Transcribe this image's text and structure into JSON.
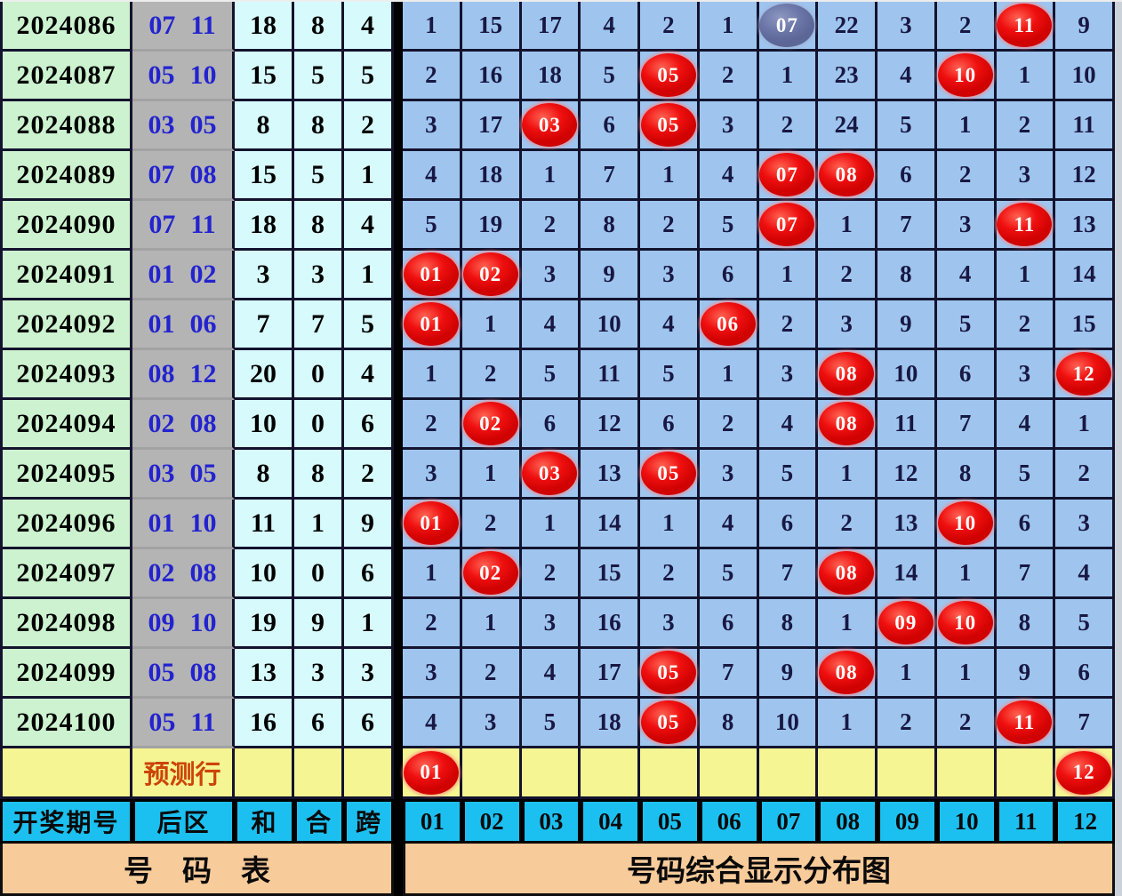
{
  "chart_data": {
    "type": "table",
    "title": "号码综合显示分布图",
    "header": {
      "period": "开奖期号",
      "back": "后区",
      "sum": "和",
      "he": "合",
      "kua": "跨"
    },
    "number_headers": [
      "01",
      "02",
      "03",
      "04",
      "05",
      "06",
      "07",
      "08",
      "09",
      "10",
      "11",
      "12"
    ],
    "prediction_label": "预测行",
    "footer_left": "号　码　表",
    "footer_right": "号码综合显示分布图",
    "rows": [
      {
        "period": "2024086",
        "back": [
          "07",
          "11"
        ],
        "sum": "18",
        "he": "8",
        "kua": "4",
        "cells": [
          "1",
          "15",
          "17",
          "4",
          "2",
          "1",
          {
            "n": "07",
            "ball": "slate"
          },
          "22",
          "3",
          "2",
          {
            "n": "11",
            "ball": "red"
          },
          "9"
        ]
      },
      {
        "period": "2024087",
        "back": [
          "05",
          "10"
        ],
        "sum": "15",
        "he": "5",
        "kua": "5",
        "cells": [
          "2",
          "16",
          "18",
          "5",
          {
            "n": "05",
            "ball": "red"
          },
          "2",
          "1",
          "23",
          "4",
          {
            "n": "10",
            "ball": "red"
          },
          "1",
          "10"
        ]
      },
      {
        "period": "2024088",
        "back": [
          "03",
          "05"
        ],
        "sum": "8",
        "he": "8",
        "kua": "2",
        "cells": [
          "3",
          "17",
          {
            "n": "03",
            "ball": "red"
          },
          "6",
          {
            "n": "05",
            "ball": "red"
          },
          "3",
          "2",
          "24",
          "5",
          "1",
          "2",
          "11"
        ]
      },
      {
        "period": "2024089",
        "back": [
          "07",
          "08"
        ],
        "sum": "15",
        "he": "5",
        "kua": "1",
        "cells": [
          "4",
          "18",
          "1",
          "7",
          "1",
          "4",
          {
            "n": "07",
            "ball": "red"
          },
          {
            "n": "08",
            "ball": "red"
          },
          "6",
          "2",
          "3",
          "12"
        ]
      },
      {
        "period": "2024090",
        "back": [
          "07",
          "11"
        ],
        "sum": "18",
        "he": "8",
        "kua": "4",
        "cells": [
          "5",
          "19",
          "2",
          "8",
          "2",
          "5",
          {
            "n": "07",
            "ball": "red"
          },
          "1",
          "7",
          "3",
          {
            "n": "11",
            "ball": "red"
          },
          "13"
        ]
      },
      {
        "period": "2024091",
        "back": [
          "01",
          "02"
        ],
        "sum": "3",
        "he": "3",
        "kua": "1",
        "cells": [
          {
            "n": "01",
            "ball": "red"
          },
          {
            "n": "02",
            "ball": "red"
          },
          "3",
          "9",
          "3",
          "6",
          "1",
          "2",
          "8",
          "4",
          "1",
          "14"
        ]
      },
      {
        "period": "2024092",
        "back": [
          "01",
          "06"
        ],
        "sum": "7",
        "he": "7",
        "kua": "5",
        "cells": [
          {
            "n": "01",
            "ball": "red"
          },
          "1",
          "4",
          "10",
          "4",
          {
            "n": "06",
            "ball": "red"
          },
          "2",
          "3",
          "9",
          "5",
          "2",
          "15"
        ]
      },
      {
        "period": "2024093",
        "back": [
          "08",
          "12"
        ],
        "sum": "20",
        "he": "0",
        "kua": "4",
        "cells": [
          "1",
          "2",
          "5",
          "11",
          "5",
          "1",
          "3",
          {
            "n": "08",
            "ball": "red"
          },
          "10",
          "6",
          "3",
          {
            "n": "12",
            "ball": "red"
          }
        ]
      },
      {
        "period": "2024094",
        "back": [
          "02",
          "08"
        ],
        "sum": "10",
        "he": "0",
        "kua": "6",
        "cells": [
          "2",
          {
            "n": "02",
            "ball": "red"
          },
          "6",
          "12",
          "6",
          "2",
          "4",
          {
            "n": "08",
            "ball": "red"
          },
          "11",
          "7",
          "4",
          "1"
        ]
      },
      {
        "period": "2024095",
        "back": [
          "03",
          "05"
        ],
        "sum": "8",
        "he": "8",
        "kua": "2",
        "cells": [
          "3",
          "1",
          {
            "n": "03",
            "ball": "red"
          },
          "13",
          {
            "n": "05",
            "ball": "red"
          },
          "3",
          "5",
          "1",
          "12",
          "8",
          "5",
          "2"
        ]
      },
      {
        "period": "2024096",
        "back": [
          "01",
          "10"
        ],
        "sum": "11",
        "he": "1",
        "kua": "9",
        "cells": [
          {
            "n": "01",
            "ball": "red"
          },
          "2",
          "1",
          "14",
          "1",
          "4",
          "6",
          "2",
          "13",
          {
            "n": "10",
            "ball": "red"
          },
          "6",
          "3"
        ]
      },
      {
        "period": "2024097",
        "back": [
          "02",
          "08"
        ],
        "sum": "10",
        "he": "0",
        "kua": "6",
        "cells": [
          "1",
          {
            "n": "02",
            "ball": "red"
          },
          "2",
          "15",
          "2",
          "5",
          "7",
          {
            "n": "08",
            "ball": "red"
          },
          "14",
          "1",
          "7",
          "4"
        ]
      },
      {
        "period": "2024098",
        "back": [
          "09",
          "10"
        ],
        "sum": "19",
        "he": "9",
        "kua": "1",
        "cells": [
          "2",
          "1",
          "3",
          "16",
          "3",
          "6",
          "8",
          "1",
          {
            "n": "09",
            "ball": "red"
          },
          {
            "n": "10",
            "ball": "red"
          },
          "8",
          "5"
        ]
      },
      {
        "period": "2024099",
        "back": [
          "05",
          "08"
        ],
        "sum": "13",
        "he": "3",
        "kua": "3",
        "cells": [
          "3",
          "2",
          "4",
          "17",
          {
            "n": "05",
            "ball": "red"
          },
          "7",
          "9",
          {
            "n": "08",
            "ball": "red"
          },
          "1",
          "1",
          "9",
          "6"
        ]
      },
      {
        "period": "2024100",
        "back": [
          "05",
          "11"
        ],
        "sum": "16",
        "he": "6",
        "kua": "6",
        "cells": [
          "4",
          "3",
          "5",
          "18",
          {
            "n": "05",
            "ball": "red"
          },
          "8",
          "10",
          "1",
          "2",
          "2",
          {
            "n": "11",
            "ball": "red"
          },
          "7"
        ]
      }
    ],
    "prediction_cells": [
      {
        "n": "01",
        "ball": "red"
      },
      "",
      "",
      "",
      "",
      "",
      "",
      "",
      "",
      "",
      "",
      {
        "n": "12",
        "ball": "red"
      }
    ]
  },
  "colors": {
    "period_bg": "#ccf2cf",
    "back_bg": "#b4b4b4",
    "back_text": "#2323cf",
    "stat_bg": "#d7fbfd",
    "grid_bg": "#9fc5ef",
    "ball_red": "#ef0f0f",
    "ball_slate": "#6b76a8",
    "prediction_bg": "#f5f593",
    "prediction_text": "#cc4409",
    "header_bg": "#1cc0f0",
    "footer_bg": "#f8cb9b",
    "grid_line": "#13132e"
  }
}
